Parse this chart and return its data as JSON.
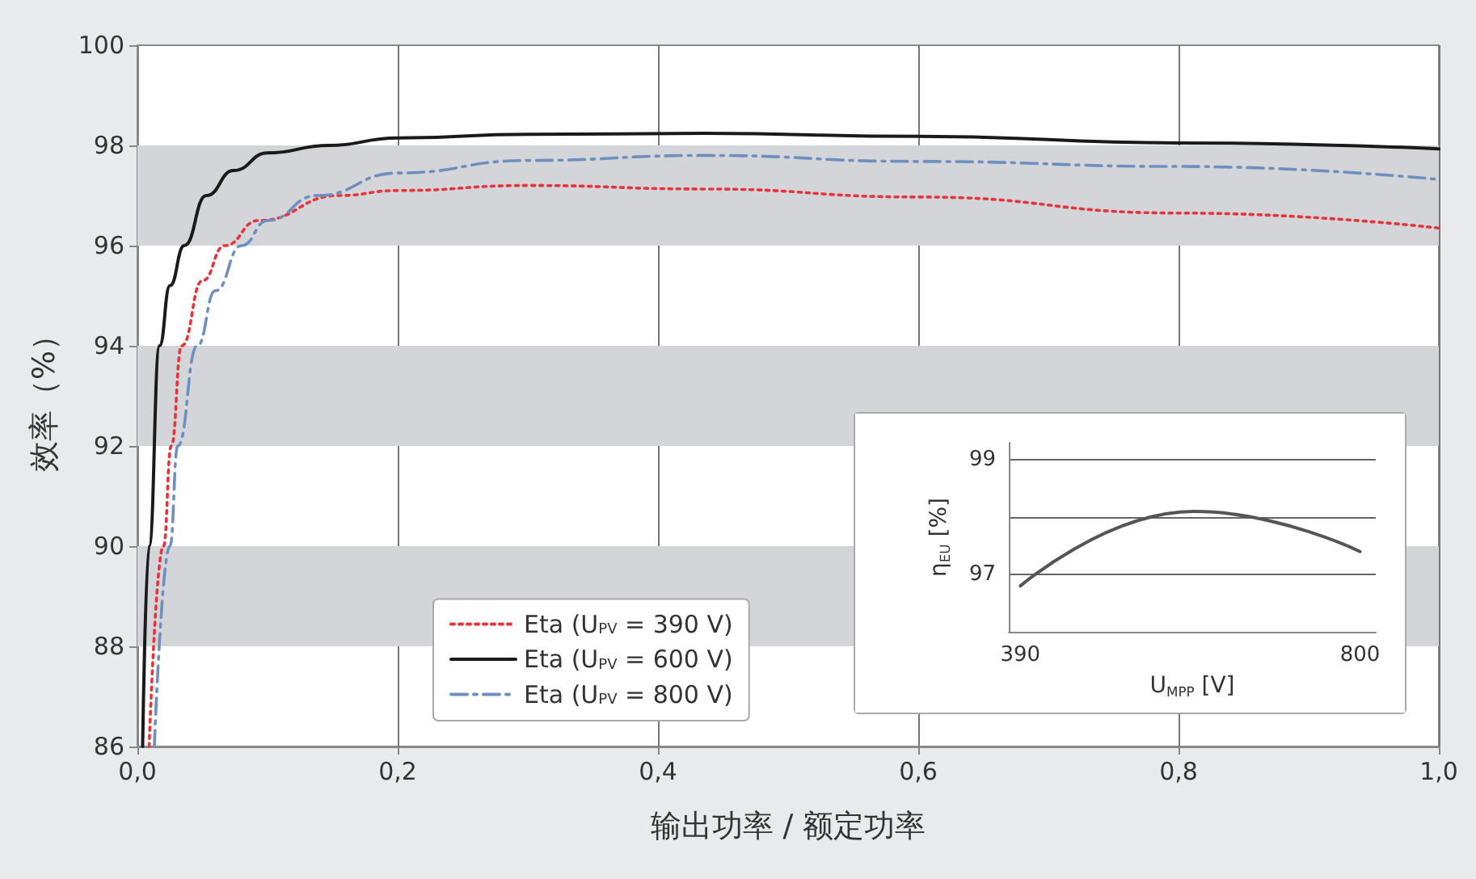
{
  "chart_data": [
    {
      "type": "line",
      "xlabel": "输出功率 / 额定功率",
      "ylabel": "效率（%）",
      "xlim": [
        0,
        1
      ],
      "xticks": [
        {
          "value": 0,
          "label": "0,0"
        },
        {
          "value": 0.2,
          "label": "0,2"
        },
        {
          "value": 0.4,
          "label": "0,4"
        },
        {
          "value": 0.6,
          "label": "0,6"
        },
        {
          "value": 0.8,
          "label": "0,8"
        },
        {
          "value": 1,
          "label": "1,0"
        }
      ],
      "ylim": [
        86,
        100
      ],
      "yticks": [
        86,
        88,
        90,
        92,
        94,
        96,
        98,
        100
      ],
      "grid": "x",
      "legend": "bottom",
      "bands": [
        {
          "axis": "y",
          "from": 88,
          "to": 90,
          "color": "#d4d5d8"
        },
        {
          "axis": "y",
          "from": 92,
          "to": 94,
          "color": "#d4d5d8"
        },
        {
          "axis": "y",
          "from": 96,
          "to": 98,
          "color": "#d4d5d8"
        }
      ],
      "series": [
        {
          "name": "Eta (U$_{PV}$ = 390 V)",
          "color": "#e8333a",
          "line_style": "dotted",
          "x": [
            0.009,
            0.02,
            0.026,
            0.034,
            0.05,
            0.067,
            0.093,
            0.155,
            0.2,
            0.3,
            0.435,
            0.6,
            0.8,
            1.0
          ],
          "values": [
            86,
            90,
            92,
            94,
            95.3,
            96,
            96.5,
            97,
            97.1,
            97.2,
            97.13,
            96.97,
            96.65,
            96.35
          ]
        },
        {
          "name": "Eta (U$_{PV}$ = 600 V)",
          "color": "#1a1a1a",
          "line_style": "solid",
          "x": [
            0.004,
            0.009,
            0.017,
            0.025,
            0.036,
            0.053,
            0.074,
            0.1,
            0.147,
            0.2,
            0.3,
            0.435,
            0.6,
            0.8,
            1.0
          ],
          "values": [
            86,
            90,
            94,
            95.2,
            96,
            97,
            97.5,
            97.85,
            98,
            98.15,
            98.22,
            98.24,
            98.18,
            98.05,
            97.93
          ]
        },
        {
          "name": "Eta (U$_{PV}$ = 800 V)",
          "color": "#6e8fbf",
          "line_style": "dashed",
          "x": [
            0.013,
            0.025,
            0.031,
            0.046,
            0.06,
            0.08,
            0.1,
            0.138,
            0.2,
            0.3,
            0.435,
            0.6,
            0.8,
            1.0
          ],
          "values": [
            86,
            90,
            92,
            94,
            95.1,
            96,
            96.5,
            97,
            97.45,
            97.7,
            97.8,
            97.68,
            97.58,
            97.32
          ]
        }
      ]
    },
    {
      "type": "line",
      "xlabel": "U$_{MPP}$ [V]",
      "ylabel": "η$_{EU}$ [%]",
      "xlim": [
        376,
        819
      ],
      "xticks": [
        390,
        800
      ],
      "ylim": [
        96,
        99.3
      ],
      "yticks": [
        97,
        {
          "value": 98,
          "label": null
        },
        99
      ],
      "grid": "y",
      "series": [
        {
          "color": "#555555",
          "line_style": "solid",
          "x": [
            390,
            600,
            800
          ],
          "values": [
            96.8,
            98.1,
            97.4
          ]
        }
      ]
    }
  ]
}
